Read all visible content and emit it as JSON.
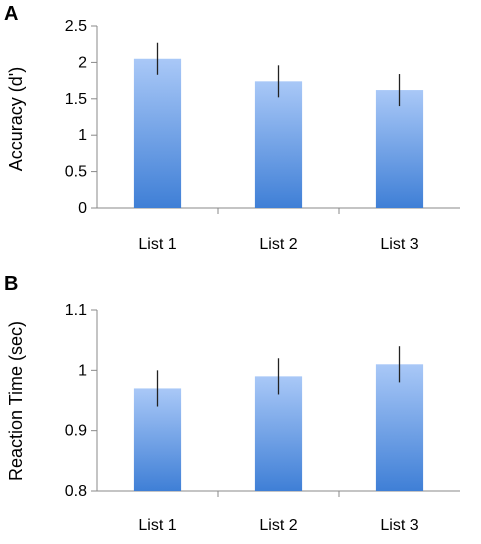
{
  "chart_data": [
    {
      "type": "bar",
      "panel_label": "A",
      "categories": [
        "List 1",
        "List 2",
        "List 3"
      ],
      "values": [
        2.05,
        1.74,
        1.62
      ],
      "errors": [
        0.22,
        0.22,
        0.22
      ],
      "ylabel": "Accuracy (d')",
      "xlabel": "",
      "ylim": [
        0,
        2.5
      ],
      "yticks": [
        "0",
        "0.5",
        "1",
        "1.5",
        "2",
        "2.5"
      ],
      "ytick_values": [
        0,
        0.5,
        1,
        1.5,
        2,
        2.5
      ],
      "grid": false,
      "bar_color": "#6a9ee6"
    },
    {
      "type": "bar",
      "panel_label": "B",
      "categories": [
        "List 1",
        "List 2",
        "List 3"
      ],
      "values": [
        0.97,
        0.99,
        1.01
      ],
      "errors": [
        0.03,
        0.03,
        0.03
      ],
      "ylabel": "Reaction Time (sec)",
      "xlabel": "",
      "ylim": [
        0.8,
        1.1
      ],
      "yticks": [
        "0.8",
        "0.9",
        "1",
        "1.1"
      ],
      "ytick_values": [
        0.8,
        0.9,
        1.0,
        1.1
      ],
      "grid": false,
      "bar_color": "#6a9ee6"
    }
  ]
}
